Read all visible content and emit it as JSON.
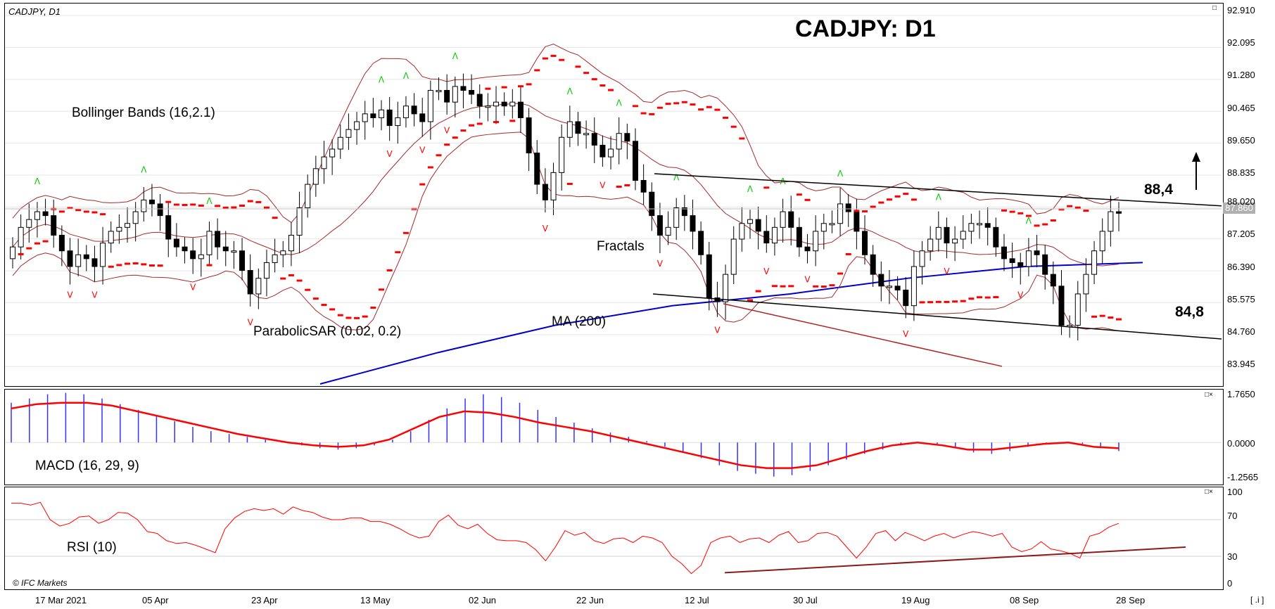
{
  "header": {
    "symbol": "CADJPY, D1",
    "title": "CADJPY: D1"
  },
  "annotations": {
    "bollinger": "Bollinger Bands (16,2.1)",
    "parabolic": "ParabolicSAR (0.02, 0.2)",
    "ma": "MA (200)",
    "fractals": "Fractals",
    "level_high": "88,4",
    "level_low": "84,8",
    "macd": "MACD (16, 29, 9)",
    "rsi": "RSI (10)",
    "copyright": "© IFC Markets",
    "corner": "[ .i ]"
  },
  "current_price": "87.860",
  "price_axis": [
    "92.910",
    "92.095",
    "91.280",
    "90.465",
    "89.650",
    "88.835",
    "88.020",
    "87.205",
    "86.390",
    "85.575",
    "84.760",
    "83.945"
  ],
  "macd_axis": [
    "1.7650",
    "0.0000",
    "-1.2565"
  ],
  "rsi_axis": [
    "100",
    "70",
    "30",
    "0"
  ],
  "dates": [
    "17 Mar 2021",
    "05 Apr",
    "23 Apr",
    "13 May",
    "02 Jun",
    "22 Jun",
    "12 Jul",
    "30 Jul",
    "19 Aug",
    "08 Sep",
    "28 Sep"
  ],
  "colors": {
    "candle_up": "#ffffff",
    "candle_down": "#000000",
    "bollinger": "#a52a2a",
    "sar": "#ff0000",
    "ma": "#0000cc",
    "macd_hist": "#3333ff",
    "macd_signal": "#ff0000",
    "rsi": "#ff0000",
    "trend": "#000000",
    "fractal_up": "#00cc00",
    "fractal_down": "#ff0000"
  },
  "chart_data": [
    {
      "type": "candlestick",
      "title": "CADJPY: D1",
      "ylim": [
        83.5,
        93.2
      ],
      "series": [
        {
          "name": "CADJPY D1 close (approx.)",
          "values": [
            87.0,
            87.5,
            87.7,
            87.9,
            87.8,
            87.3,
            86.9,
            86.5,
            86.8,
            86.7,
            86.5,
            87.1,
            87.4,
            87.5,
            87.6,
            87.9,
            88.2,
            88.1,
            87.8,
            87.2,
            87.0,
            86.9,
            86.7,
            86.8,
            87.4,
            87.0,
            86.9,
            86.9,
            86.4,
            85.8,
            86.2,
            86.6,
            86.8,
            86.9,
            87.3,
            88.0,
            88.6,
            89.0,
            89.3,
            89.5,
            89.8,
            90.0,
            90.2,
            90.4,
            90.3,
            90.5,
            90.1,
            90.3,
            90.6,
            90.4,
            90.2,
            91.0,
            91.0,
            90.7,
            91.1,
            91.0,
            90.9,
            90.6,
            90.6,
            90.7,
            90.6,
            90.7,
            90.3,
            89.4,
            88.6,
            88.2,
            88.9,
            89.8,
            90.2,
            89.9,
            89.9,
            89.6,
            89.3,
            89.5,
            89.9,
            89.7,
            88.7,
            88.4,
            87.8,
            87.3,
            87.5,
            88.0,
            87.8,
            87.4,
            86.8,
            85.7,
            85.6,
            86.3,
            87.2,
            87.6,
            87.7,
            87.4,
            87.1,
            87.5,
            87.9,
            87.5,
            87.0,
            86.9,
            87.4,
            87.6,
            87.6,
            88.1,
            87.9,
            87.4,
            86.8,
            86.3,
            86.0,
            86.0,
            85.9,
            85.5,
            86.5,
            86.9,
            87.2,
            87.5,
            87.1,
            87.2,
            87.4,
            87.6,
            87.6,
            87.5,
            87.0,
            86.7,
            86.6,
            86.5,
            86.9,
            86.8,
            86.3,
            86.0,
            85.0,
            85.0,
            85.8,
            86.3,
            86.9,
            87.4,
            87.9,
            87.86
          ]
        },
        {
          "name": "MA (200)",
          "values": [
            83.5,
            84.3,
            85.0,
            85.5,
            85.8,
            86.2,
            86.5,
            86.6
          ]
        }
      ],
      "trendlines": {
        "upper_resistance": 88.4,
        "lower_support": 84.8
      }
    },
    {
      "type": "bar",
      "title": "MACD (16, 29, 9)",
      "ylim": [
        -1.2565,
        1.765
      ],
      "series": [
        {
          "name": "histogram",
          "values": [
            1.4,
            1.55,
            1.7,
            1.75,
            1.7,
            1.55,
            1.35,
            1.15,
            0.95,
            0.75,
            0.55,
            0.4,
            0.3,
            0.2,
            0.1,
            0.0,
            -0.1,
            -0.2,
            -0.25,
            -0.2,
            -0.1,
            0.1,
            0.4,
            0.8,
            1.2,
            1.55,
            1.7,
            1.6,
            1.4,
            1.15,
            0.9,
            0.7,
            0.5,
            0.35,
            0.2,
            0.05,
            -0.15,
            -0.35,
            -0.55,
            -0.8,
            -1.0,
            -1.1,
            -1.2,
            -1.15,
            -1.0,
            -0.8,
            -0.6,
            -0.4,
            -0.25,
            -0.1,
            0.0,
            -0.05,
            -0.2,
            -0.35,
            -0.4,
            -0.3,
            -0.15,
            -0.05,
            0.0,
            -0.05,
            -0.2,
            -0.3
          ]
        },
        {
          "name": "signal",
          "values": [
            1.2,
            1.35,
            1.4,
            1.4,
            1.3,
            1.1,
            0.9,
            0.7,
            0.5,
            0.3,
            0.15,
            0.0,
            -0.1,
            -0.15,
            -0.1,
            0.1,
            0.5,
            0.9,
            1.1,
            1.05,
            0.9,
            0.7,
            0.55,
            0.4,
            0.2,
            0.0,
            -0.2,
            -0.4,
            -0.6,
            -0.8,
            -0.9,
            -0.9,
            -0.8,
            -0.55,
            -0.3,
            -0.1,
            0.0,
            -0.1,
            -0.25,
            -0.25,
            -0.15,
            -0.05,
            0.0,
            -0.15,
            -0.2
          ]
        }
      ]
    },
    {
      "type": "line",
      "title": "RSI (10)",
      "ylim": [
        0,
        100
      ],
      "series": [
        {
          "name": "RSI",
          "values": [
            88,
            88,
            86,
            89,
            70,
            63,
            66,
            73,
            74,
            66,
            70,
            78,
            77,
            70,
            57,
            55,
            47,
            44,
            45,
            42,
            38,
            34,
            60,
            72,
            79,
            82,
            80,
            82,
            76,
            84,
            80,
            78,
            73,
            70,
            70,
            72,
            72,
            68,
            68,
            65,
            60,
            54,
            50,
            52,
            68,
            75,
            64,
            60,
            65,
            55,
            48,
            47,
            47,
            45,
            37,
            25,
            40,
            58,
            53,
            56,
            47,
            44,
            49,
            50,
            45,
            52,
            50,
            45,
            30,
            22,
            11,
            20,
            45,
            50,
            52,
            45,
            49,
            50,
            45,
            53,
            57,
            45,
            47,
            55,
            56,
            52,
            40,
            28,
            40,
            55,
            58,
            47,
            56,
            52,
            47,
            52,
            55,
            50,
            54,
            57,
            55,
            52,
            55,
            40,
            35,
            38,
            46,
            38,
            36,
            33,
            28,
            52,
            55,
            62,
            66
          ]
        },
        {
          "name": "trend",
          "values": [
            12,
            40
          ]
        }
      ]
    }
  ]
}
